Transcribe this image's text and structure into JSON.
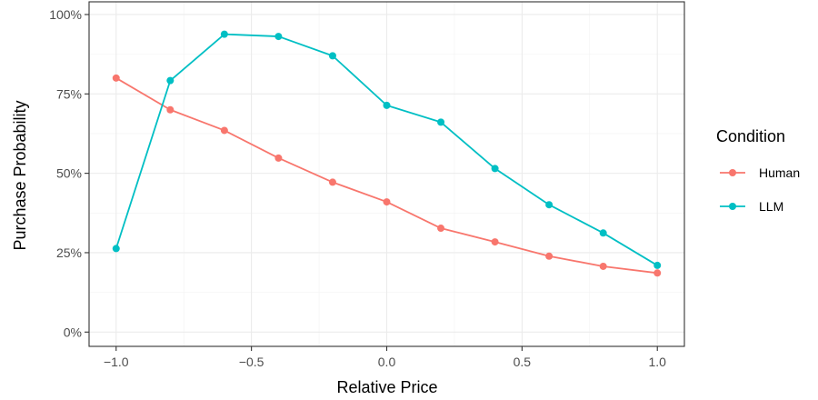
{
  "chart_data": {
    "type": "line",
    "xlabel": "Relative Price",
    "ylabel": "Purchase Probability",
    "x": [
      -1.0,
      -0.8,
      -0.6,
      -0.4,
      -0.2,
      0.0,
      0.2,
      0.4,
      0.6,
      0.8,
      1.0
    ],
    "xlim": [
      -1.1,
      1.1
    ],
    "ylim": [
      -0.045,
      1.04
    ],
    "x_ticks": [
      -1.0,
      -0.5,
      0.0,
      0.5,
      1.0
    ],
    "x_tick_labels": [
      "−1.0",
      "−0.5",
      "0.0",
      "0.5",
      "1.0"
    ],
    "y_ticks": [
      0,
      0.25,
      0.5,
      0.75,
      1.0
    ],
    "y_tick_labels": [
      "0%",
      "25%",
      "50%",
      "75%",
      "100%"
    ],
    "grid": true,
    "legend": {
      "title": "Condition",
      "position": "right"
    },
    "series": [
      {
        "name": "Human",
        "color": "#F8766D",
        "values": [
          0.8,
          0.7,
          0.635,
          0.548,
          0.472,
          0.41,
          0.327,
          0.284,
          0.239,
          0.207,
          0.186
        ]
      },
      {
        "name": "LLM",
        "color": "#00BFC4",
        "values": [
          0.263,
          0.792,
          0.938,
          0.931,
          0.87,
          0.714,
          0.661,
          0.515,
          0.401,
          0.312,
          0.21
        ]
      }
    ]
  }
}
